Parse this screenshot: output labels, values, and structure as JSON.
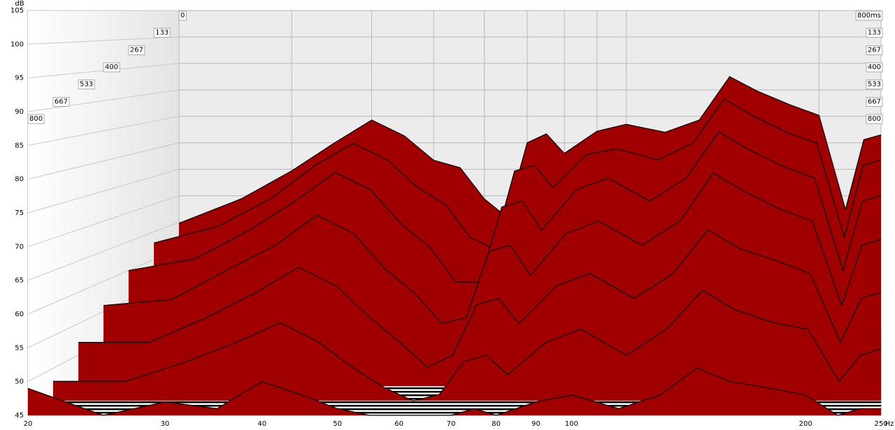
{
  "chart_data": {
    "type": "waterfall",
    "x_label": "Hz",
    "y_label": "dB",
    "time_span_label": "800ms",
    "xlim": [
      20,
      250
    ],
    "xticks": [
      20,
      30,
      40,
      50,
      60,
      70,
      80,
      90,
      100,
      200,
      250
    ],
    "ylim": [
      45,
      105
    ],
    "yticks": [
      45,
      50,
      55,
      60,
      65,
      70,
      75,
      80,
      85,
      90,
      95,
      100,
      105
    ],
    "zlim": [
      0,
      800
    ],
    "zticks": [
      0,
      133,
      267,
      400,
      533,
      667,
      800
    ],
    "color": "#a00000",
    "grid": true,
    "frequencies": [
      20,
      25,
      30,
      35,
      40,
      45,
      50,
      55,
      60,
      65,
      70,
      75,
      80,
      90,
      100,
      115,
      130,
      145,
      160,
      180,
      200,
      220,
      235,
      250
    ],
    "slices": [
      {
        "time": 0,
        "values": [
          64.8,
          69.4,
          74.7,
          80,
          84.3,
          81.3,
          76.7,
          75.3,
          69.4,
          66,
          80,
          81.7,
          78,
          82.2,
          83.5,
          82,
          84.3,
          92.5,
          89.8,
          87.2,
          85.2,
          67.4,
          80.6,
          81.5
        ]
      },
      {
        "time": 133,
        "values": [
          63,
          66,
          71,
          77,
          81,
          78,
          73,
          70,
          64,
          62,
          76,
          77,
          73,
          79,
          80,
          78,
          81,
          89,
          86,
          83,
          81,
          64,
          77,
          78
        ]
      },
      {
        "time": 267,
        "values": [
          60,
          62,
          67,
          72,
          77,
          74,
          68,
          64,
          58,
          58,
          71,
          72,
          67,
          74,
          76,
          72,
          76,
          84,
          81,
          78,
          76,
          60,
          72,
          73
        ]
      },
      {
        "time": 400,
        "values": [
          56,
          57,
          62,
          66,
          71,
          68,
          62,
          58,
          53,
          54,
          65,
          66,
          61,
          68,
          70,
          66,
          70,
          78,
          75,
          72,
          70,
          56,
          66,
          67
        ]
      },
      {
        "time": 533,
        "values": [
          52,
          52,
          56,
          60,
          64,
          61,
          56,
          52,
          48,
          50,
          58,
          59,
          55,
          61,
          63,
          59,
          63,
          70,
          67,
          65,
          63,
          52,
          59,
          60
        ]
      },
      {
        "time": 667,
        "values": [
          48,
          48,
          51,
          54,
          57,
          54,
          50,
          47,
          45,
          46,
          51,
          52,
          49,
          54,
          56,
          52,
          56,
          62,
          59,
          57,
          56,
          48,
          52,
          53
        ]
      },
      {
        "time": 800,
        "values": [
          49,
          45,
          47,
          46,
          50,
          48,
          46,
          45,
          45,
          45,
          45,
          46,
          45,
          47,
          48,
          46,
          48,
          52,
          50,
          49,
          48,
          45,
          46,
          46
        ]
      }
    ]
  }
}
